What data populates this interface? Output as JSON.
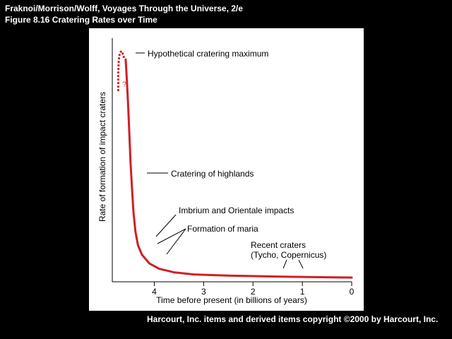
{
  "header": {
    "line1": "Fraknoi/Morrison/Wolff, Voyages Through the Universe, 2/e",
    "line2": "Figure 8.16   Cratering Rates over Time"
  },
  "footer": {
    "text": "Harcourt, Inc. items and derived items copyright ©2000 by Harcourt, Inc."
  },
  "colors": {
    "background": "#000000",
    "panel": "#ffffff",
    "curve": "#d01f24",
    "question_mark": "#c8581c",
    "text": "#000000"
  },
  "chart_data": {
    "type": "line",
    "title": "",
    "xlabel": "Time before present (in billions of years)",
    "ylabel": "Rate of formation of impact craters",
    "xlim": [
      4.85,
      0
    ],
    "ylim": [
      0,
      1
    ],
    "x_ticks": [
      "4",
      "3",
      "2",
      "1",
      "0"
    ],
    "y_ticks": [],
    "grid": false,
    "series": [
      {
        "name": "",
        "style": "solid",
        "points": [
          {
            "x": 4.58,
            "y": 0.94
          },
          {
            "x": 4.56,
            "y": 0.87
          },
          {
            "x": 4.54,
            "y": 0.79
          },
          {
            "x": 4.52,
            "y": 0.7
          },
          {
            "x": 4.5,
            "y": 0.6
          },
          {
            "x": 4.48,
            "y": 0.5
          },
          {
            "x": 4.45,
            "y": 0.39
          },
          {
            "x": 4.42,
            "y": 0.29
          },
          {
            "x": 4.38,
            "y": 0.21
          },
          {
            "x": 4.33,
            "y": 0.155
          },
          {
            "x": 4.25,
            "y": 0.115
          },
          {
            "x": 4.1,
            "y": 0.078
          },
          {
            "x": 3.9,
            "y": 0.055
          },
          {
            "x": 3.6,
            "y": 0.04
          },
          {
            "x": 3.2,
            "y": 0.031
          },
          {
            "x": 2.5,
            "y": 0.026
          },
          {
            "x": 1.5,
            "y": 0.022
          },
          {
            "x": 0.5,
            "y": 0.019
          },
          {
            "x": 0.0,
            "y": 0.018
          }
        ]
      },
      {
        "name": "",
        "style": "dotted",
        "points": [
          {
            "x": 4.73,
            "y": 0.81
          },
          {
            "x": 4.73,
            "y": 0.88
          },
          {
            "x": 4.72,
            "y": 0.935
          },
          {
            "x": 4.7,
            "y": 0.965
          },
          {
            "x": 4.67,
            "y": 0.975
          },
          {
            "x": 4.64,
            "y": 0.965
          },
          {
            "x": 4.61,
            "y": 0.945
          },
          {
            "x": 4.58,
            "y": 0.94
          }
        ]
      }
    ],
    "annotations": [
      {
        "id": "maximum",
        "text": "Hypothetical cratering maximum"
      },
      {
        "id": "highlands",
        "text": "Cratering of highlands"
      },
      {
        "id": "imbrium",
        "text": "Imbrium and Orientale impacts"
      },
      {
        "id": "maria",
        "text": "Formation of maria"
      },
      {
        "id": "recent_1",
        "text": "Recent craters"
      },
      {
        "id": "recent_2",
        "text": "(Tycho, Copernicus)"
      },
      {
        "id": "question",
        "text": "?"
      }
    ]
  }
}
